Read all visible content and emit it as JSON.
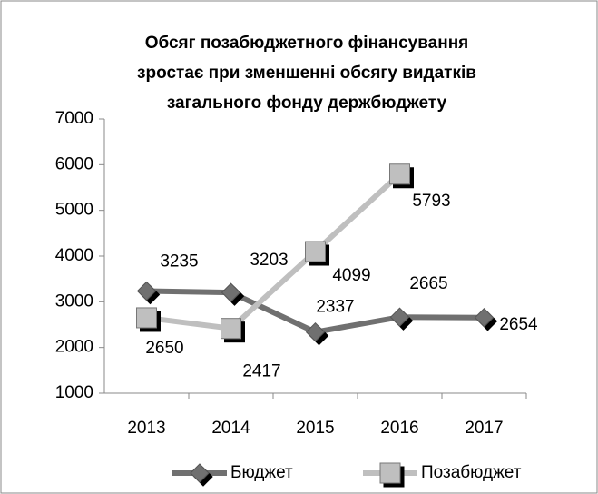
{
  "chart_data": {
    "type": "line",
    "title": [
      "Обсяг позабюджетного фінансування",
      "зростає при зменшенні обсягу видатків",
      "загального фонду держбюджету"
    ],
    "categories": [
      "2013",
      "2014",
      "2015",
      "2016",
      "2017"
    ],
    "series": [
      {
        "name": "Бюджет",
        "color": "#707070",
        "marker": "diamond",
        "values": [
          3235,
          3203,
          2337,
          2665,
          2654
        ]
      },
      {
        "name": "Позабюджет",
        "color": "#bfbfbf",
        "marker": "square",
        "values": [
          2650,
          2417,
          4099,
          5793,
          null
        ]
      }
    ],
    "ylim": [
      1000,
      7000
    ],
    "yticks": [
      1000,
      2000,
      3000,
      4000,
      5000,
      6000,
      7000
    ],
    "grid": false,
    "legend": "bottom"
  }
}
